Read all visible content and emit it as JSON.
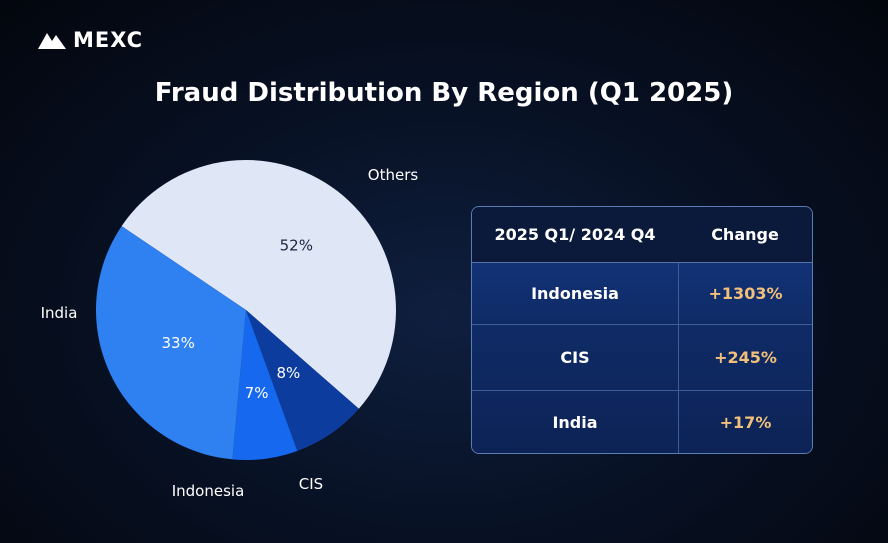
{
  "brand": {
    "name": "MEXC"
  },
  "title": "Fraud Distribution By Region (Q1 2025)",
  "chart_data": {
    "type": "pie",
    "title": "Fraud Distribution By Region (Q1 2025)",
    "slices": [
      {
        "label": "Others",
        "value": 52,
        "value_label": "52%",
        "color": "#dfe6f6"
      },
      {
        "label": "CIS",
        "value": 8,
        "value_label": "8%",
        "color": "#0c3d9e"
      },
      {
        "label": "Indonesia",
        "value": 7,
        "value_label": "7%",
        "color": "#1669ef"
      },
      {
        "label": "India",
        "value": 33,
        "value_label": "33%",
        "color": "#2f80f0"
      }
    ]
  },
  "table": {
    "headers": [
      "2025 Q1/ 2024 Q4",
      "Change"
    ],
    "rows": [
      {
        "region": "Indonesia",
        "change": "+1303%"
      },
      {
        "region": "CIS",
        "change": "+245%"
      },
      {
        "region": "India",
        "change": "+17%"
      }
    ]
  },
  "colors": {
    "accent_change": "#f2c07a",
    "table_border": "#5d7cb4",
    "background": "#050b18"
  }
}
